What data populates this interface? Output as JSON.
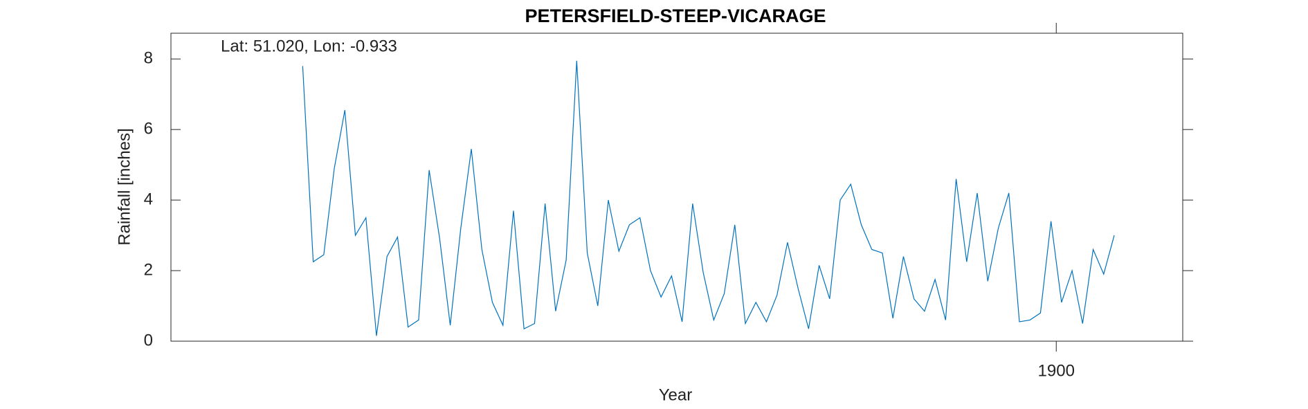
{
  "chart_data": {
    "type": "line",
    "title": "PETERSFIELD-STEEP-VICARAGE",
    "annotation": "Lat: 51.020, Lon: -0.933",
    "xlabel": "Year",
    "ylabel": "Rainfall [inches]",
    "x": [
      1828.5,
      1829.5,
      1830.5,
      1831.5,
      1832.5,
      1833.5,
      1834.5,
      1835.5,
      1836.5,
      1837.5,
      1838.5,
      1839.5,
      1840.5,
      1841.5,
      1842.5,
      1843.5,
      1844.5,
      1845.5,
      1846.5,
      1847.5,
      1848.5,
      1849.5,
      1850.5,
      1851.5,
      1852.5,
      1853.5,
      1854.5,
      1855.5,
      1856.5,
      1857.5,
      1858.5,
      1859.5,
      1860.5,
      1861.5,
      1862.5,
      1863.5,
      1864.5,
      1865.5,
      1866.5,
      1867.5,
      1868.5,
      1869.5,
      1870.5,
      1871.5,
      1872.5,
      1873.5,
      1874.5,
      1875.5,
      1876.5,
      1877.5,
      1878.5,
      1879.5,
      1880.5,
      1881.5,
      1882.5,
      1883.5,
      1884.5,
      1885.5,
      1886.5,
      1887.5,
      1888.5,
      1889.5,
      1890.5,
      1891.5,
      1892.5,
      1893.5,
      1894.5,
      1895.5,
      1896.5,
      1897.5,
      1898.5,
      1899.5,
      1900.5,
      1901.5,
      1902.5,
      1903.5,
      1904.5,
      1905.5
    ],
    "series": [
      {
        "name": "Rainfall",
        "color": "#0072bd",
        "values": [
          7.8,
          2.25,
          2.45,
          4.9,
          6.55,
          3.0,
          3.5,
          0.15,
          2.4,
          2.95,
          0.4,
          0.6,
          4.85,
          2.9,
          0.45,
          3.2,
          5.45,
          2.6,
          1.1,
          0.45,
          3.7,
          0.35,
          0.5,
          3.9,
          0.85,
          2.3,
          7.95,
          2.5,
          1.0,
          4.0,
          2.55,
          3.3,
          3.5,
          2.0,
          1.25,
          1.85,
          0.55,
          3.9,
          1.95,
          0.6,
          1.35,
          3.3,
          0.5,
          1.1,
          0.55,
          1.3,
          2.8,
          1.5,
          0.35,
          2.15,
          1.2,
          4.0,
          4.45,
          3.3,
          2.6,
          2.5,
          0.65,
          2.4,
          1.2,
          0.85,
          1.75,
          0.6,
          4.6,
          2.25,
          4.2,
          1.7,
          3.2,
          4.2,
          0.55,
          0.6,
          0.8,
          3.4,
          1.1,
          2.0,
          0.5,
          2.6,
          1.9,
          3.0
        ]
      }
    ],
    "xlim": [
      1816,
      1912
    ],
    "xticks": [
      1900
    ],
    "ylim": [
      0,
      8.73
    ],
    "yticks": [
      0,
      2,
      4,
      6,
      8
    ],
    "grid": false
  }
}
